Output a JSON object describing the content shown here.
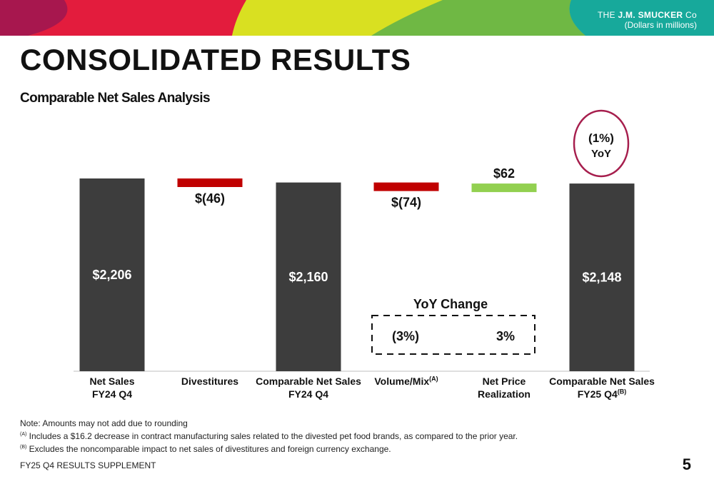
{
  "header": {
    "brand_prefix": "THE",
    "brand_name": "J.M. SMUCKER",
    "brand_suffix": "Co",
    "units": "(Dollars in millions)"
  },
  "title": "CONSOLIDATED RESULTS",
  "subtitle": "Comparable Net Sales Analysis",
  "colors": {
    "total_bar": "#3d3d3d",
    "decrease_bar": "#c00000",
    "increase_bar": "#92d050",
    "circle": "#a61e4d"
  },
  "chart_data": {
    "type": "bar",
    "subtype": "waterfall",
    "categories": [
      {
        "line1": "Net Sales",
        "line2": "FY24 Q4",
        "sup": ""
      },
      {
        "line1": "Divestitures",
        "line2": "",
        "sup": ""
      },
      {
        "line1": "Comparable Net Sales",
        "line2": "FY24 Q4",
        "sup": ""
      },
      {
        "line1": "Volume/Mix",
        "line2": "",
        "sup": "(A)"
      },
      {
        "line1": "Net Price",
        "line2": "Realization",
        "sup": ""
      },
      {
        "line1": "Comparable Net Sales",
        "line2": "FY25 Q4",
        "sup": "(B)"
      }
    ],
    "values": [
      2206,
      -46,
      2160,
      -74,
      62,
      2148
    ],
    "kinds": [
      "total",
      "decrease",
      "total",
      "decrease",
      "increase",
      "total"
    ],
    "labels": [
      "$2,206",
      "$(46)",
      "$2,160",
      "$(74)",
      "$62",
      "$2,148"
    ],
    "yoy_box": {
      "title": "YoY Change",
      "volume_mix": "(3%)",
      "net_price": "3%"
    },
    "yoy_circle": {
      "line1": "(1%)",
      "line2": "YoY"
    }
  },
  "notes": {
    "line1": "Note: Amounts may not add due to rounding",
    "a_marker": "(A)",
    "a_text": " Includes a $16.2 decrease in contract manufacturing sales related to the divested pet food brands, as compared to the prior year.",
    "b_marker": "(B)",
    "b_text": " Excludes the noncomparable impact to net sales of divestitures and foreign currency exchange."
  },
  "footer": "FY25 Q4 RESULTS SUPPLEMENT",
  "page_number": "5"
}
